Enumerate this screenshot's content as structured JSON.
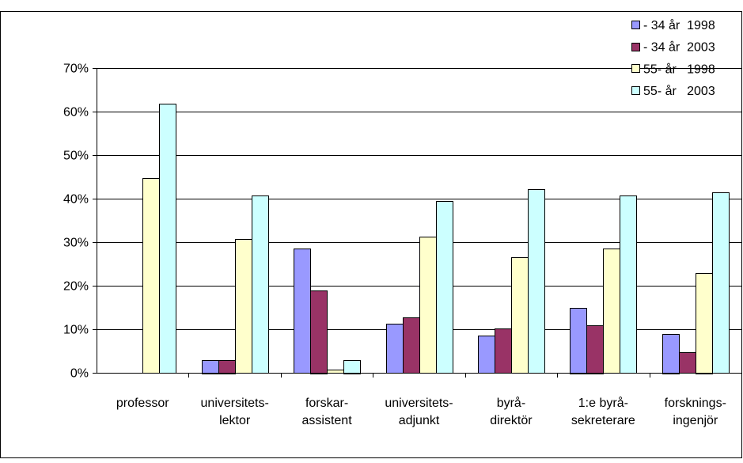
{
  "chart_data": {
    "type": "bar",
    "title": "",
    "xlabel": "",
    "ylabel": "",
    "ylim": [
      0,
      0.7
    ],
    "yticks": [
      "0%",
      "10%",
      "20%",
      "30%",
      "40%",
      "50%",
      "60%",
      "70%"
    ],
    "grid": true,
    "legend_position": "top-right",
    "categories": [
      [
        "professor"
      ],
      [
        "universitets-",
        "lektor"
      ],
      [
        "forskar-",
        "assistent"
      ],
      [
        "universitets-",
        "adjunkt"
      ],
      [
        "byrå-",
        "direktör"
      ],
      [
        "1:e byrå-",
        "sekreterare"
      ],
      [
        "forsknings-",
        "ingenjör"
      ]
    ],
    "series": [
      {
        "name": "- 34 år  1998",
        "color": "#9999FF",
        "values": [
          0.0,
          0.03,
          0.285,
          0.113,
          0.085,
          0.15,
          0.09
        ]
      },
      {
        "name": "- 34 år  2003",
        "color": "#993366",
        "values": [
          0.0,
          0.03,
          0.19,
          0.127,
          0.102,
          0.11,
          0.047
        ]
      },
      {
        "name": "55- år   1998",
        "color": "#FFFFCC",
        "values": [
          0.447,
          0.308,
          0.007,
          0.313,
          0.265,
          0.285,
          0.23
        ]
      },
      {
        "name": "55- år   2003",
        "color": "#CCFFFF",
        "values": [
          0.619,
          0.408,
          0.03,
          0.395,
          0.421,
          0.407,
          0.415
        ]
      }
    ]
  }
}
